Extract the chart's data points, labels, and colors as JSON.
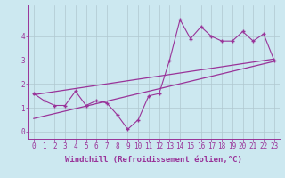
{
  "title": "",
  "xlabel": "Windchill (Refroidissement éolien,°C)",
  "x_data": [
    0,
    1,
    2,
    3,
    4,
    5,
    6,
    7,
    8,
    9,
    10,
    11,
    12,
    13,
    14,
    15,
    16,
    17,
    18,
    19,
    20,
    21,
    22,
    23
  ],
  "y_data": [
    1.6,
    1.3,
    1.1,
    1.1,
    1.7,
    1.1,
    1.3,
    1.2,
    0.7,
    0.1,
    0.5,
    1.5,
    1.6,
    3.0,
    4.7,
    3.9,
    4.4,
    4.0,
    3.8,
    3.8,
    4.2,
    3.8,
    4.1,
    3.0
  ],
  "trend1_start": 1.55,
  "trend1_end": 3.05,
  "trend2_start": 0.55,
  "trend2_end": 2.95,
  "line_color": "#993399",
  "marker": "+",
  "background_color": "#cce8f0",
  "grid_color": "#b0c8d0",
  "xlim": [
    -0.5,
    23.5
  ],
  "ylim": [
    -0.3,
    5.3
  ],
  "yticks": [
    0,
    1,
    2,
    3,
    4
  ],
  "xticks": [
    0,
    1,
    2,
    3,
    4,
    5,
    6,
    7,
    8,
    9,
    10,
    11,
    12,
    13,
    14,
    15,
    16,
    17,
    18,
    19,
    20,
    21,
    22,
    23
  ],
  "tick_fontsize": 5.5,
  "label_fontsize": 6.5,
  "fig_bg": "#cce8f0"
}
